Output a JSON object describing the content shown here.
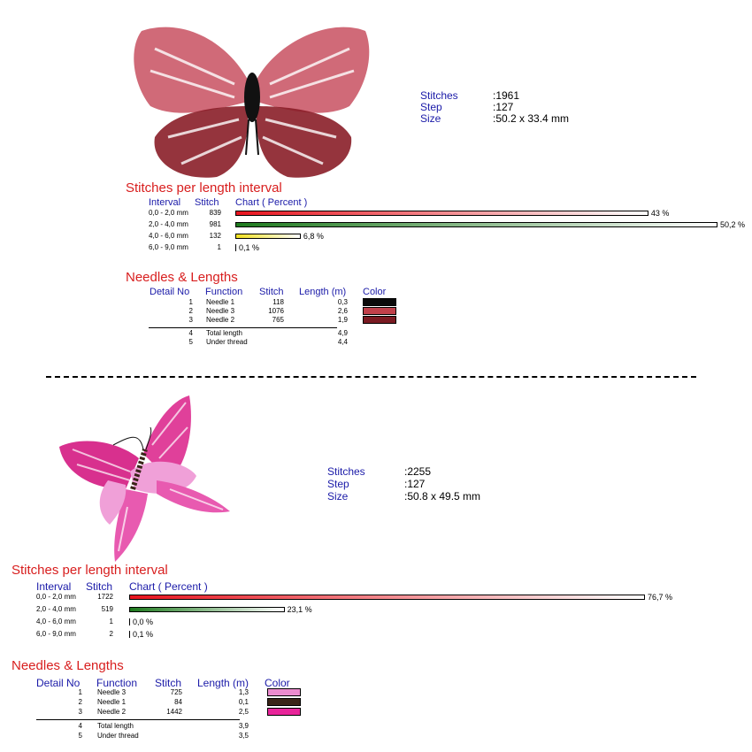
{
  "designs": [
    {
      "info": {
        "stitches_label": "Stitches",
        "stitches_value": ":1961",
        "step_label": "Step",
        "step_value": ":127",
        "size_label": "Size",
        "size_value": ":50.2 x 33.4 mm"
      },
      "interval_title": "Stitches per length interval",
      "interval_headers": {
        "interval": "Interval",
        "stitch": "Stitch",
        "chart": "Chart ( Percent )"
      },
      "intervals": [
        {
          "range": "0,0 - 2,0 mm",
          "stitch": "839",
          "percent_label": "43 %",
          "percent": 43.0,
          "color": "red"
        },
        {
          "range": "2,0 - 4,0 mm",
          "stitch": "981",
          "percent_label": "50,2 %",
          "percent": 50.2,
          "color": "green"
        },
        {
          "range": "4,0 - 6,0 mm",
          "stitch": "132",
          "percent_label": "6,8 %",
          "percent": 6.8,
          "color": "yellow"
        },
        {
          "range": "6,0 - 9,0 mm",
          "stitch": "1",
          "percent_label": "0,1 %",
          "percent": 0.1,
          "color": "none"
        }
      ],
      "needles_title": "Needles & Lengths",
      "needle_headers": {
        "detail": "Detail No",
        "function": "Function",
        "stitch": "Stitch",
        "length": "Length (m)",
        "color": "Color"
      },
      "needles": [
        {
          "no": "1",
          "function": "Needle 1",
          "stitch": "118",
          "length": "0,3",
          "color": "#0a0a0a"
        },
        {
          "no": "2",
          "function": "Needle 3",
          "stitch": "1076",
          "length": "2,6",
          "color": "#c0404a"
        },
        {
          "no": "3",
          "function": "Needle 2",
          "stitch": "765",
          "length": "1,9",
          "color": "#7a1a22"
        }
      ],
      "totals": [
        {
          "no": "4",
          "function": "Total length",
          "length": "4,9"
        },
        {
          "no": "5",
          "function": "Under thread",
          "length": "4,4"
        }
      ]
    },
    {
      "info": {
        "stitches_label": "Stitches",
        "stitches_value": ":2255",
        "step_label": "Step",
        "step_value": ":127",
        "size_label": "Size",
        "size_value": ":50.8 x 49.5 mm"
      },
      "interval_title": "Stitches per length interval",
      "interval_headers": {
        "interval": "Interval",
        "stitch": "Stitch",
        "chart": "Chart ( Percent )"
      },
      "intervals": [
        {
          "range": "0,0 - 2,0 mm",
          "stitch": "1722",
          "percent_label": "76,7 %",
          "percent": 76.7,
          "color": "red"
        },
        {
          "range": "2,0 - 4,0 mm",
          "stitch": "519",
          "percent_label": "23,1 %",
          "percent": 23.1,
          "color": "green"
        },
        {
          "range": "4,0 - 6,0 mm",
          "stitch": "1",
          "percent_label": "0,0 %",
          "percent": 0.0,
          "color": "none"
        },
        {
          "range": "6,0 - 9,0 mm",
          "stitch": "2",
          "percent_label": "0,1 %",
          "percent": 0.1,
          "color": "none"
        }
      ],
      "needles_title": "Needles & Lengths",
      "needle_headers": {
        "detail": "Detail No",
        "function": "Function",
        "stitch": "Stitch",
        "length": "Length (m)",
        "color": "Color"
      },
      "needles": [
        {
          "no": "1",
          "function": "Needle 3",
          "stitch": "725",
          "length": "1,3",
          "color": "#ec8ccf"
        },
        {
          "no": "2",
          "function": "Needle 1",
          "stitch": "84",
          "length": "0,1",
          "color": "#3a2418"
        },
        {
          "no": "3",
          "function": "Needle 2",
          "stitch": "1442",
          "length": "2,5",
          "color": "#e8249a"
        }
      ],
      "totals": [
        {
          "no": "4",
          "function": "Total length",
          "length": "3,9"
        },
        {
          "no": "5",
          "function": "Under thread",
          "length": "3,5"
        }
      ]
    }
  ]
}
